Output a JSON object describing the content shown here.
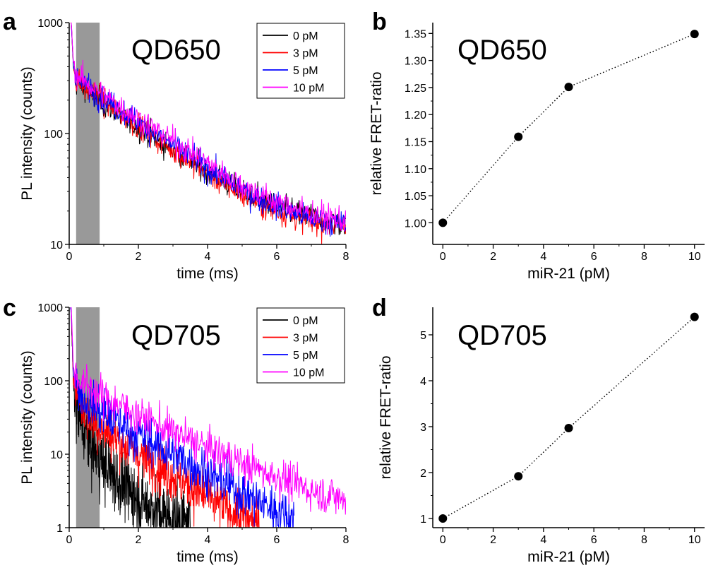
{
  "chart_data": [
    {
      "panel": "a",
      "type": "line",
      "label": "QD650",
      "xlabel": "time (ms)",
      "ylabel": "PL intensity (counts)",
      "xscale": "linear",
      "yscale": "log",
      "xlim": [
        0,
        8
      ],
      "ylim": [
        10,
        1000
      ],
      "xticks": [
        0,
        2,
        4,
        6,
        8
      ],
      "yticks": [
        10,
        100,
        1000
      ],
      "shaded_region": [
        0.2,
        0.88
      ],
      "legend_position": "top-right",
      "grid": false,
      "series": [
        {
          "name": "0 pM",
          "color": "#000000",
          "noise": 0.1,
          "x": [
            0.06,
            0.12,
            0.2,
            0.5,
            1,
            2,
            3,
            4,
            5,
            6,
            7,
            8
          ],
          "values": [
            1000,
            400,
            295,
            240,
            185,
            112,
            71,
            45,
            30,
            22,
            18,
            15
          ]
        },
        {
          "name": "3 pM",
          "color": "#ff0000",
          "noise": 0.1,
          "x": [
            0.06,
            0.12,
            0.2,
            0.5,
            1,
            2,
            3,
            4,
            5,
            6,
            7,
            8
          ],
          "values": [
            1000,
            410,
            305,
            248,
            192,
            117,
            72,
            44,
            28,
            20,
            16,
            14
          ]
        },
        {
          "name": "5 pM",
          "color": "#0000ff",
          "noise": 0.1,
          "x": [
            0.06,
            0.12,
            0.2,
            0.5,
            1,
            2,
            3,
            4,
            5,
            6,
            7,
            8
          ],
          "values": [
            1000,
            430,
            320,
            265,
            205,
            127,
            78,
            48,
            31,
            22,
            17,
            15
          ]
        },
        {
          "name": "10 pM",
          "color": "#ff00ff",
          "noise": 0.1,
          "x": [
            0.06,
            0.12,
            0.2,
            0.5,
            1,
            2,
            3,
            4,
            5,
            6,
            7,
            8
          ],
          "values": [
            1000,
            450,
            345,
            285,
            222,
            137,
            86,
            54,
            34,
            24,
            19,
            16
          ]
        }
      ]
    },
    {
      "panel": "b",
      "type": "scatter",
      "label": "QD650",
      "xlabel": "miR-21 (pM)",
      "ylabel": "relative FRET-ratio",
      "xlim": [
        -0.4,
        10.4
      ],
      "ylim": [
        0.96,
        1.37
      ],
      "xticks": [
        0,
        2,
        4,
        6,
        8,
        10
      ],
      "yticks": [
        1.0,
        1.05,
        1.1,
        1.15,
        1.2,
        1.25,
        1.3,
        1.35
      ],
      "ytick_labels": [
        "1.00",
        "1.05",
        "1.10",
        "1.15",
        "1.20",
        "1.25",
        "1.30",
        "1.35"
      ],
      "line_style": "dotted",
      "series": [
        {
          "x": [
            0,
            3,
            5,
            10
          ],
          "values": [
            1.0,
            1.159,
            1.251,
            1.349
          ]
        }
      ]
    },
    {
      "panel": "c",
      "type": "line",
      "label": "QD705",
      "xlabel": "time (ms)",
      "ylabel": "PL intensity (counts)",
      "xscale": "linear",
      "yscale": "log",
      "xlim": [
        0,
        8
      ],
      "ylim": [
        1,
        1000
      ],
      "xticks": [
        0,
        2,
        4,
        6,
        8
      ],
      "yticks": [
        1,
        10,
        100,
        1000
      ],
      "shaded_region": [
        0.2,
        0.88
      ],
      "legend_position": "top-right",
      "grid": false,
      "series": [
        {
          "name": "0 pM",
          "color": "#000000",
          "noise": 0.4,
          "x": [
            0.06,
            0.12,
            0.2,
            0.4,
            0.7,
            1,
            1.5,
            2,
            2.5,
            3,
            3.5
          ],
          "values": [
            800,
            90,
            45,
            22,
            12,
            7,
            4,
            2.5,
            1.7,
            1.3,
            1
          ]
        },
        {
          "name": "3 pM",
          "color": "#ff0000",
          "noise": 0.3,
          "x": [
            0.06,
            0.12,
            0.2,
            0.4,
            0.7,
            1,
            2,
            3,
            4,
            5,
            5.5
          ],
          "values": [
            900,
            110,
            70,
            42,
            28,
            21,
            10,
            5,
            2.5,
            1.4,
            1.1
          ]
        },
        {
          "name": "5 pM",
          "color": "#0000ff",
          "noise": 0.28,
          "x": [
            0.06,
            0.12,
            0.2,
            0.4,
            0.7,
            1,
            2,
            3,
            4,
            5,
            6,
            6.5
          ],
          "values": [
            950,
            130,
            90,
            60,
            44,
            35,
            18,
            10,
            5.5,
            3,
            1.7,
            1.3
          ]
        },
        {
          "name": "10 pM",
          "color": "#ff00ff",
          "noise": 0.22,
          "x": [
            0.06,
            0.12,
            0.2,
            0.4,
            0.7,
            1,
            2,
            3,
            4,
            5,
            6,
            7,
            8
          ],
          "values": [
            1000,
            160,
            115,
            92,
            75,
            60,
            34,
            20,
            12,
            7.5,
            5,
            3.2,
            2.4
          ]
        }
      ]
    },
    {
      "panel": "d",
      "type": "scatter",
      "label": "QD705",
      "xlabel": "miR-21 (pM)",
      "ylabel": "relative FRET-ratio",
      "xlim": [
        -0.4,
        10.4
      ],
      "ylim": [
        0.8,
        5.6
      ],
      "xticks": [
        0,
        2,
        4,
        6,
        8,
        10
      ],
      "yticks": [
        1,
        2,
        3,
        4,
        5
      ],
      "line_style": "dotted",
      "series": [
        {
          "x": [
            0,
            3,
            5,
            10
          ],
          "values": [
            1.0,
            1.92,
            2.97,
            5.39
          ]
        }
      ]
    }
  ]
}
